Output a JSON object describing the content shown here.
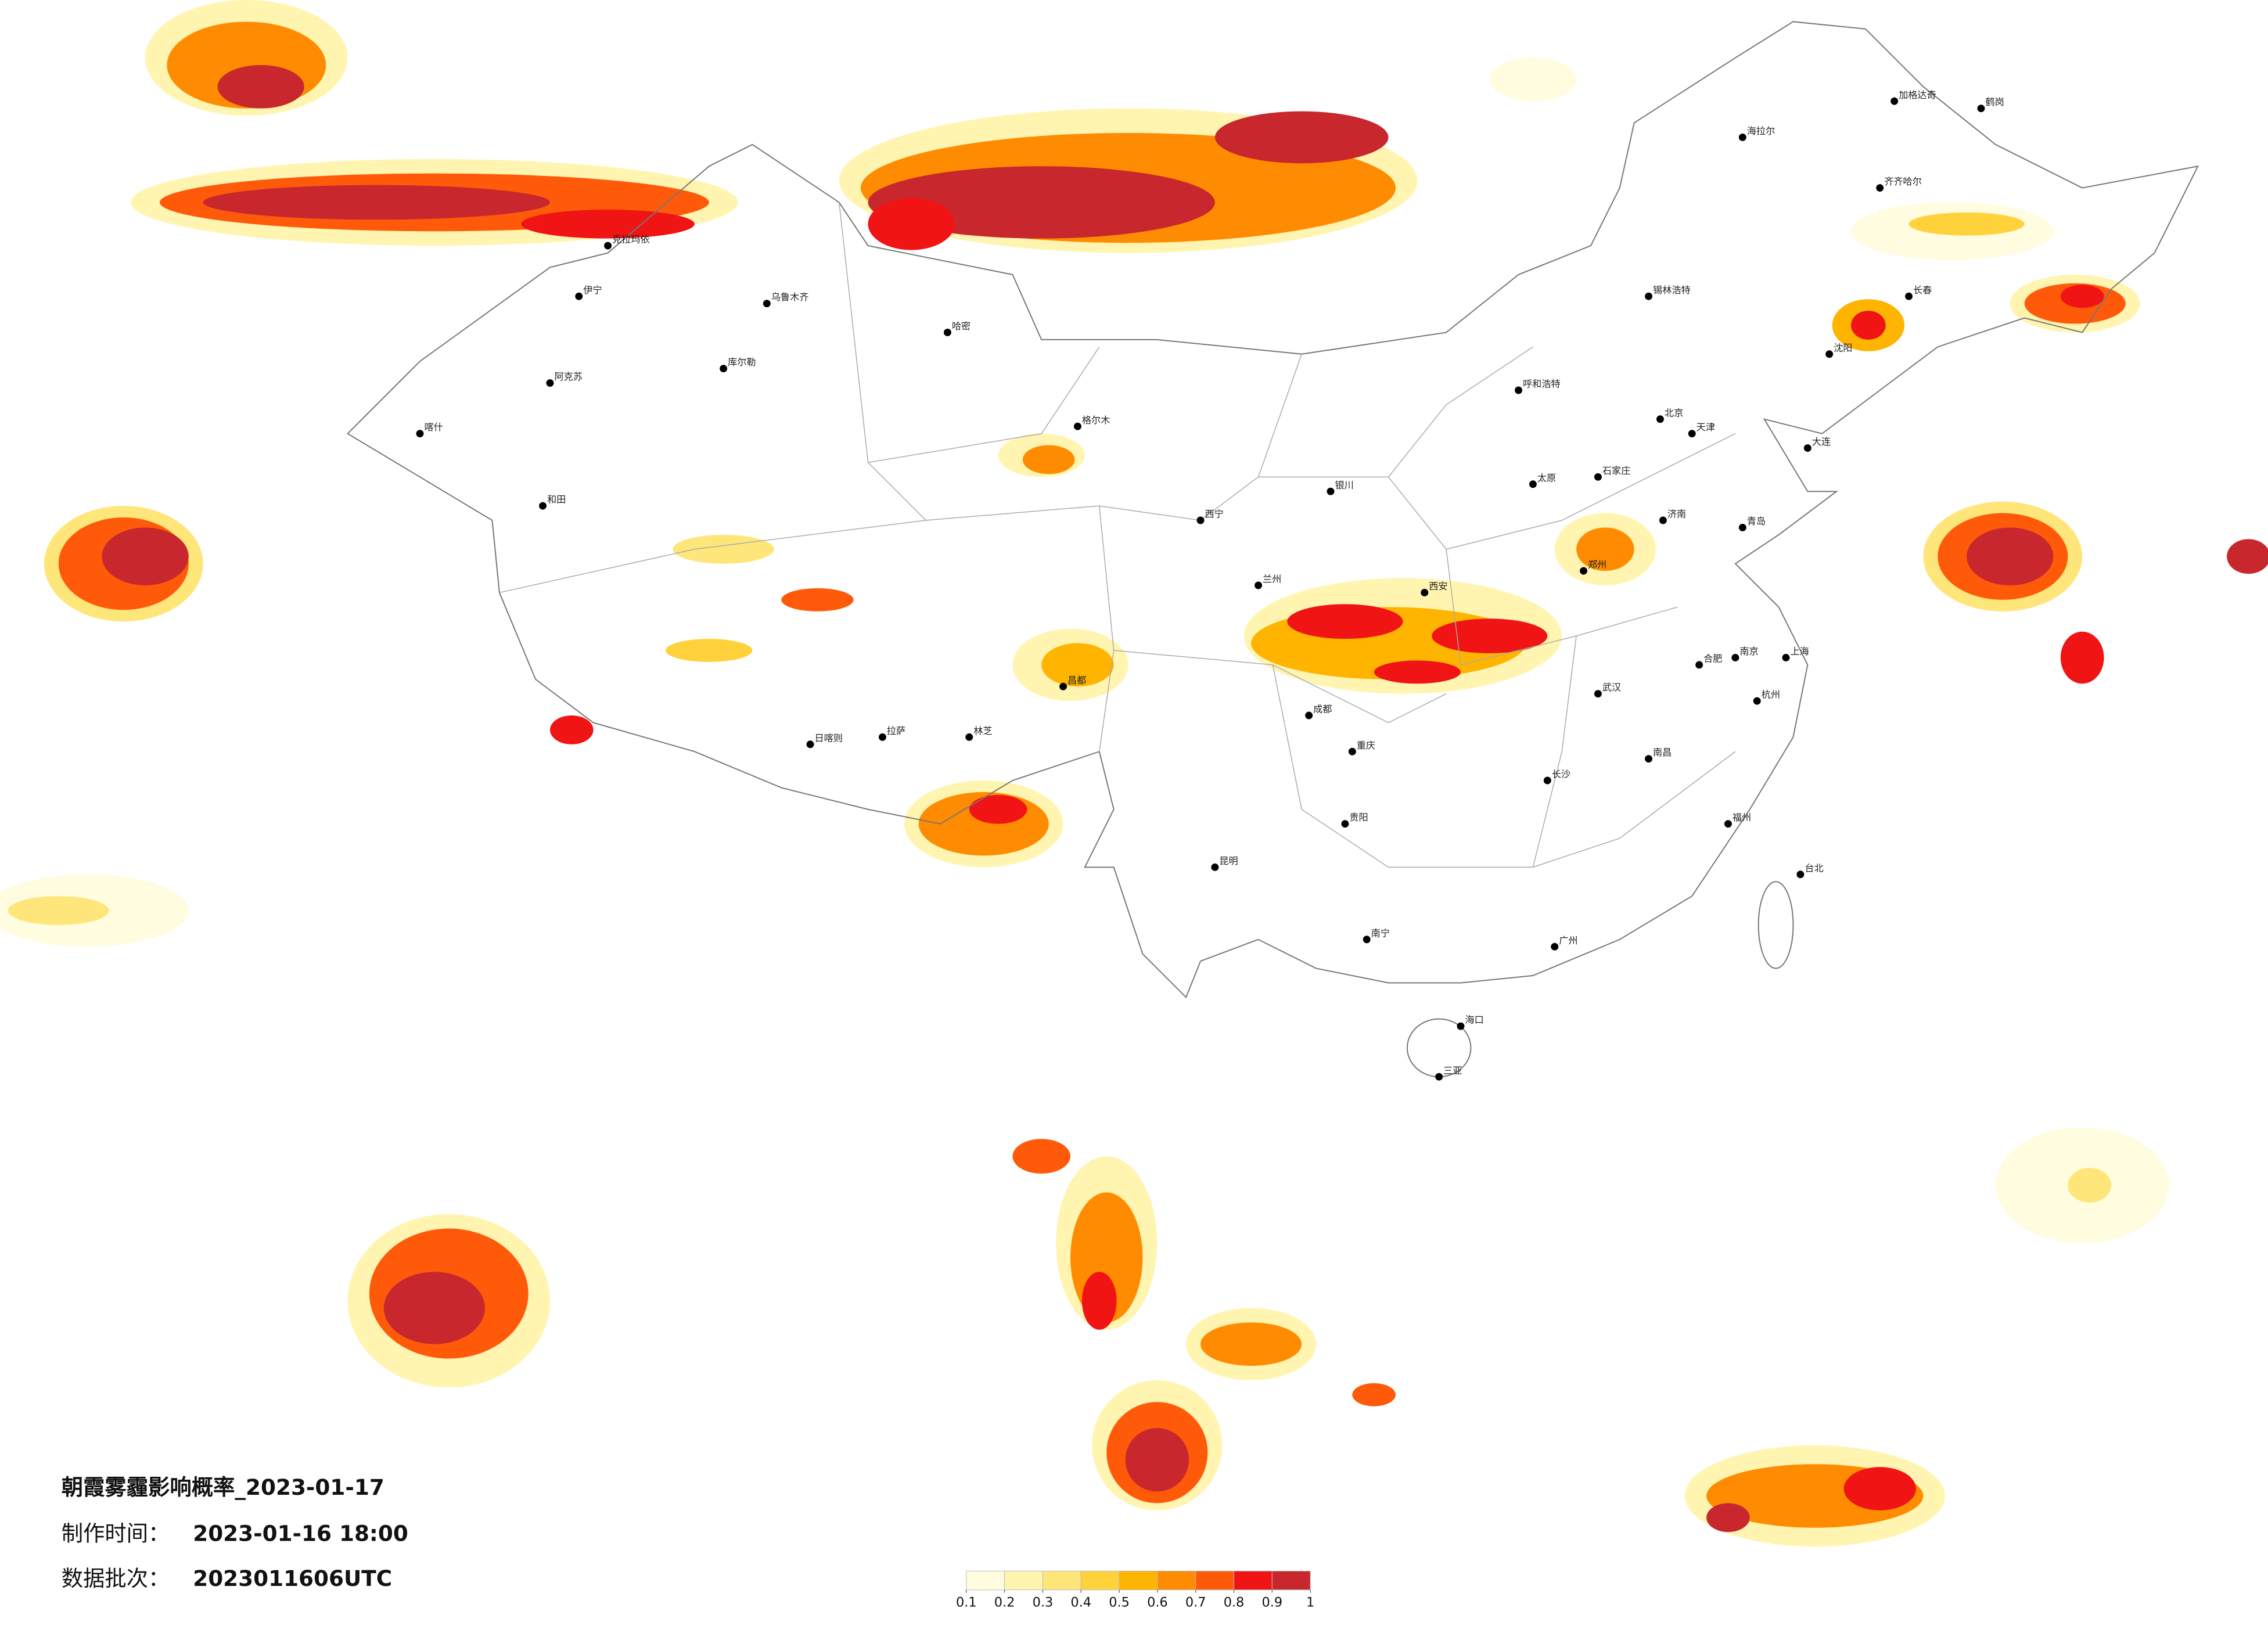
{
  "title": "朝霞雾霾影响概率_2023-01-17",
  "made_label": "制作时间：",
  "made_time": "2023-01-16 18:00",
  "batch_label": "数据批次：",
  "batch": "2023011606UTC",
  "legend": {
    "colors": [
      "#fffce0",
      "#fff5b0",
      "#ffe67a",
      "#ffd23c",
      "#ffb400",
      "#ff8c00",
      "#ff5a0a",
      "#f01414",
      "#c8282d"
    ],
    "ticks": [
      0.1,
      0.2,
      0.3,
      0.4,
      0.5,
      0.6,
      0.7,
      0.8,
      0.9,
      1
    ]
  },
  "cities": [
    "北京",
    "上海",
    "广州",
    "乌鲁木齐",
    "拉萨",
    "成都",
    "重庆",
    "西安",
    "武汉",
    "齐齐哈尔",
    "长春",
    "沈阳",
    "海拉尔",
    "呼和浩特",
    "兰州",
    "西宁",
    "银川",
    "昆明",
    "贵阳",
    "南宁",
    "海口",
    "台北",
    "喀什",
    "和田",
    "伊宁",
    "阿克苏",
    "哈密",
    "格尔木",
    "郑州",
    "济南",
    "南京",
    "杭州",
    "福州",
    "长沙",
    "南昌",
    "合肥",
    "太原",
    "石家庄",
    "天津",
    "大连",
    "青岛",
    "三亚",
    "日喀则",
    "林芝",
    "昌都",
    "锡林浩特",
    "加格达奇",
    "鹤岗",
    "库尔勒",
    "克拉玛依"
  ]
}
